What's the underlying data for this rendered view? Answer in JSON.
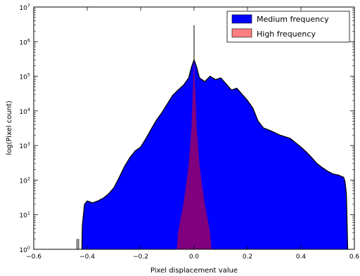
{
  "chart_data": {
    "type": "area",
    "title": "",
    "xlabel": "Pixel displacement value",
    "ylabel": "log(Pixel count)",
    "xlim": [
      -0.6,
      0.6
    ],
    "ylim_exponent": [
      0,
      7
    ],
    "yscale": "log",
    "grid": false,
    "legend_position": "top-right",
    "x_ticks": [
      -0.6,
      -0.4,
      -0.2,
      0.0,
      0.2,
      0.4,
      0.6
    ],
    "x_tick_labels": [
      "−0.6",
      "−0.4",
      "−0.2",
      "0.0",
      "0.2",
      "0.4",
      "0.6"
    ],
    "y_tick_exponents": [
      0,
      1,
      2,
      3,
      4,
      5,
      6,
      7
    ],
    "y_tick_base": "10",
    "series": [
      {
        "name": "Medium frequency",
        "color": "#0000ff",
        "edge_color": "#000000",
        "x": [
          -0.42,
          -0.418,
          -0.41,
          -0.4,
          -0.38,
          -0.36,
          -0.34,
          -0.32,
          -0.3,
          -0.28,
          -0.26,
          -0.24,
          -0.22,
          -0.2,
          -0.18,
          -0.16,
          -0.14,
          -0.12,
          -0.1,
          -0.08,
          -0.06,
          -0.04,
          -0.02,
          -0.01,
          0.0,
          0.01,
          0.02,
          0.04,
          0.06,
          0.08,
          0.1,
          0.12,
          0.14,
          0.16,
          0.18,
          0.2,
          0.22,
          0.24,
          0.26,
          0.28,
          0.3,
          0.32,
          0.34,
          0.36,
          0.38,
          0.4,
          0.42,
          0.44,
          0.46,
          0.48,
          0.5,
          0.52,
          0.54,
          0.56,
          0.565,
          0.57,
          0.572,
          0.575
        ],
        "y": [
          1,
          5,
          20,
          25,
          22,
          25,
          30,
          40,
          60,
          120,
          250,
          450,
          700,
          900,
          1600,
          3000,
          5500,
          9000,
          16000,
          28000,
          40000,
          55000,
          90000,
          180000,
          300000,
          180000,
          90000,
          70000,
          100000,
          80000,
          90000,
          60000,
          40000,
          45000,
          30000,
          20000,
          12000,
          5000,
          3200,
          2800,
          2400,
          2000,
          1800,
          1600,
          1200,
          900,
          650,
          450,
          300,
          230,
          180,
          150,
          140,
          120,
          90,
          40,
          10,
          1
        ]
      },
      {
        "name": "High frequency",
        "color": "#ff0000",
        "alpha": 0.5,
        "x": [
          -0.065,
          -0.06,
          -0.05,
          -0.04,
          -0.03,
          -0.02,
          -0.01,
          -0.005,
          0.0,
          0.005,
          0.01,
          0.02,
          0.03,
          0.04,
          0.05,
          0.06,
          0.065
        ],
        "y": [
          1,
          3,
          8,
          20,
          70,
          300,
          3000,
          30000,
          300000,
          30000,
          3000,
          300,
          70,
          20,
          8,
          3,
          1
        ]
      }
    ],
    "spike": {
      "x": 0.0,
      "y": 3000000
    }
  }
}
